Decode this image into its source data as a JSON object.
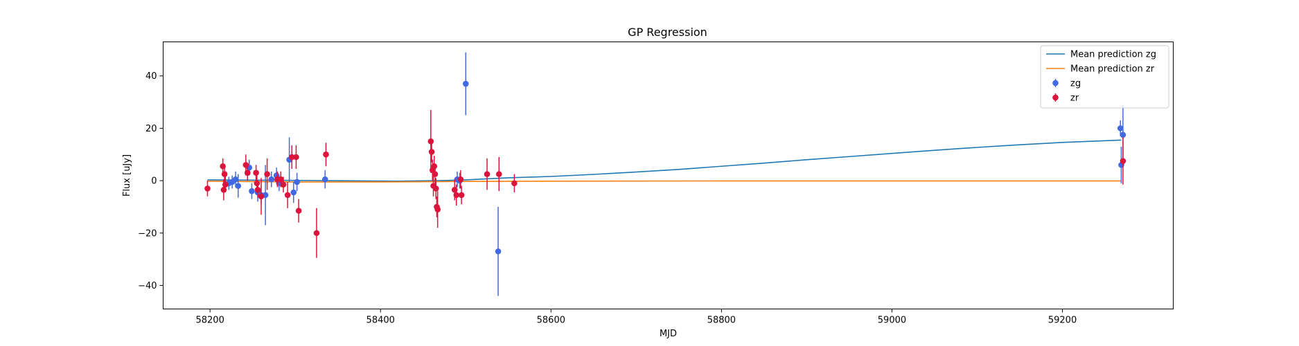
{
  "chart_data": {
    "type": "scatter",
    "title": "GP Regression",
    "xlabel": "MJD",
    "ylabel": "Flux [uJy]",
    "xlim": [
      58145,
      59330
    ],
    "ylim": [
      -49,
      53
    ],
    "xticks": [
      58200,
      58400,
      58600,
      58800,
      59000,
      59200
    ],
    "yticks": [
      -40,
      -20,
      0,
      20,
      40
    ],
    "grid": false,
    "legend_position": "top-right",
    "lines": [
      {
        "name": "Mean prediction zg",
        "color": "#1f77b4",
        "points": [
          [
            58197,
            0.3
          ],
          [
            58300,
            0.1
          ],
          [
            58420,
            -0.2
          ],
          [
            58480,
            0.1
          ],
          [
            58500,
            0.3
          ],
          [
            58550,
            1.1
          ],
          [
            58600,
            1.6
          ],
          [
            58650,
            2.4
          ],
          [
            58700,
            3.3
          ],
          [
            58750,
            4.3
          ],
          [
            58800,
            5.5
          ],
          [
            58850,
            6.7
          ],
          [
            58900,
            8.0
          ],
          [
            58950,
            9.2
          ],
          [
            59000,
            10.4
          ],
          [
            59050,
            11.6
          ],
          [
            59100,
            12.7
          ],
          [
            59150,
            13.7
          ],
          [
            59200,
            14.6
          ],
          [
            59269,
            15.5
          ]
        ]
      },
      {
        "name": "Mean prediction zr",
        "color": "#ff7f0e",
        "points": [
          [
            58197,
            -0.2
          ],
          [
            58300,
            -0.5
          ],
          [
            58400,
            -0.5
          ],
          [
            58500,
            -0.3
          ],
          [
            58600,
            -0.2
          ],
          [
            58800,
            -0.1
          ],
          [
            59000,
            -0.1
          ],
          [
            59200,
            -0.1
          ],
          [
            59269,
            -0.1
          ]
        ]
      }
    ],
    "series": [
      {
        "name": "zg",
        "color": "#4169e1",
        "points": [
          [
            58222,
            -1.0,
            2.5
          ],
          [
            58226,
            -0.5,
            2.5
          ],
          [
            58230,
            0.5,
            3.0
          ],
          [
            58233,
            -2.0,
            4.5
          ],
          [
            58244,
            3.0,
            3.0
          ],
          [
            58246,
            5.0,
            3.0
          ],
          [
            58249,
            -4.0,
            3.0
          ],
          [
            58256,
            -4.5,
            3.5
          ],
          [
            58260,
            -5.5,
            3.5
          ],
          [
            58265,
            -5.5,
            11.5
          ],
          [
            58272,
            0.5,
            3.0
          ],
          [
            58278,
            2.0,
            3.0
          ],
          [
            58281,
            -1.0,
            3.0
          ],
          [
            58293,
            8.0,
            8.5
          ],
          [
            58298,
            -4.5,
            4.0
          ],
          [
            58302,
            -0.5,
            3.5
          ],
          [
            58335,
            0.5,
            3.5
          ],
          [
            58490,
            0.5,
            3.0
          ],
          [
            58493,
            0.0,
            3.0
          ],
          [
            58500,
            37.0,
            12.0
          ],
          [
            58538,
            -27.0,
            17.0
          ],
          [
            59268,
            20.0,
            3.0
          ],
          [
            59269,
            6.0,
            7.0
          ],
          [
            59271,
            17.5,
            11.5
          ]
        ]
      },
      {
        "name": "zr",
        "color": "#dc143c",
        "points": [
          [
            58197,
            -3.0,
            3.0
          ],
          [
            58215,
            5.5,
            3.0
          ],
          [
            58216,
            -3.5,
            4.0
          ],
          [
            58217,
            2.5,
            3.0
          ],
          [
            58218,
            -1.5,
            3.0
          ],
          [
            58242,
            6.0,
            4.0
          ],
          [
            58244,
            3.0,
            3.0
          ],
          [
            58254,
            3.0,
            3.0
          ],
          [
            58255,
            -1.0,
            3.0
          ],
          [
            58256,
            -3.5,
            3.0
          ],
          [
            58260,
            -6.0,
            7.0
          ],
          [
            58267,
            2.5,
            6.0
          ],
          [
            58279,
            0.5,
            3.0
          ],
          [
            58283,
            0.5,
            3.0
          ],
          [
            58286,
            -1.5,
            3.0
          ],
          [
            58291,
            -5.5,
            5.0
          ],
          [
            58296,
            9.0,
            4.5
          ],
          [
            58301,
            9.0,
            4.5
          ],
          [
            58304,
            -11.5,
            4.5
          ],
          [
            58325,
            -20.0,
            9.5
          ],
          [
            58336,
            10.0,
            4.5
          ],
          [
            58459,
            15.0,
            12.0
          ],
          [
            58460,
            11.0,
            4.0
          ],
          [
            58461,
            4.0,
            4.0
          ],
          [
            58462,
            -2.0,
            4.0
          ],
          [
            58463,
            5.5,
            4.0
          ],
          [
            58464,
            2.5,
            4.0
          ],
          [
            58465,
            -3.0,
            4.0
          ],
          [
            58466,
            -10.0,
            4.0
          ],
          [
            58467,
            -11.0,
            7.0
          ],
          [
            58487,
            -3.5,
            4.0
          ],
          [
            58489,
            -5.5,
            4.0
          ],
          [
            58494,
            0.5,
            3.5
          ],
          [
            58495,
            -5.5,
            3.5
          ],
          [
            58525,
            2.5,
            6.0
          ],
          [
            58539,
            2.5,
            6.5
          ],
          [
            58557,
            -1.0,
            3.5
          ],
          [
            59271,
            7.5,
            9.0
          ]
        ]
      }
    ],
    "legend": [
      {
        "label": "Mean prediction zg",
        "kind": "line",
        "color": "#1f77b4"
      },
      {
        "label": "Mean prediction zr",
        "kind": "line",
        "color": "#ff7f0e"
      },
      {
        "label": "zg",
        "kind": "errorbar",
        "color": "#4169e1"
      },
      {
        "label": "zr",
        "kind": "errorbar",
        "color": "#dc143c"
      }
    ]
  }
}
